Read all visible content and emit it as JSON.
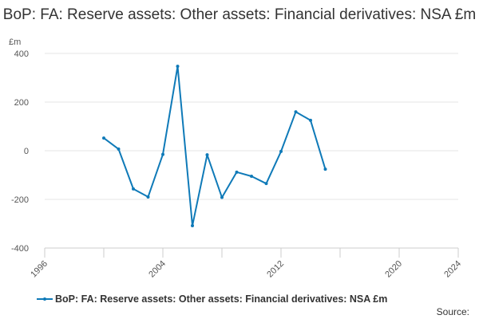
{
  "title": "BoP: FA: Reserve assets: Other assets: Financial derivatives: NSA £m",
  "legend_label": "BoP: FA: Reserve assets: Other assets: Financial derivatives: NSA £m",
  "source_label": "Source:",
  "colors": {
    "series": "#0f7ab8",
    "grid": "#e6e6e6",
    "axis": "#cccccc"
  },
  "chart_data": {
    "type": "line",
    "title": "BoP: FA: Reserve assets: Other assets: Financial derivatives: NSA £m",
    "ylabel": "£m",
    "xlabel": "",
    "xlim": [
      1996,
      2024
    ],
    "ylim": [
      -400,
      400
    ],
    "y_ticks": [
      -400,
      -200,
      0,
      200,
      400
    ],
    "x_ticks": [
      1996,
      2004,
      2012,
      2020,
      2024
    ],
    "x_minor_ticks": [
      1996,
      2000,
      2004,
      2008,
      2012,
      2016,
      2020,
      2024
    ],
    "grid": true,
    "legend": "bottom-left",
    "series": [
      {
        "name": "BoP: FA: Reserve assets: Other assets: Financial derivatives: NSA £m",
        "x": [
          2000,
          2001,
          2002,
          2003,
          2004,
          2005,
          2006,
          2007,
          2008,
          2009,
          2010,
          2011,
          2012,
          2013,
          2014,
          2015
        ],
        "values": [
          52,
          7,
          -157,
          -190,
          -15,
          347,
          -308,
          -17,
          -192,
          -88,
          -105,
          -135,
          -3,
          160,
          125,
          -76
        ]
      }
    ]
  }
}
